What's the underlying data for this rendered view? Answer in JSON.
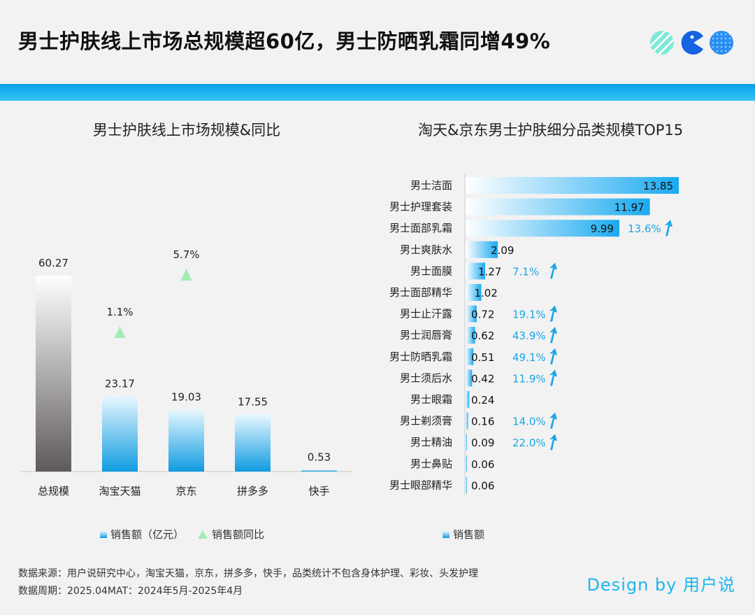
{
  "title": "男士护肤线上市场总规模超60亿，男士防晒乳霜同增49%",
  "left_chart_title": "男士护肤线上市场规模&同比",
  "right_chart_title": "淘天&京东男士护肤细分品类规模TOP15",
  "left_legend": {
    "bar": "销售额（亿元）",
    "line": "销售额同比"
  },
  "right_legend": {
    "bar": "销售额"
  },
  "footer": {
    "source": "数据来源：用户说研究中心，淘宝天猫，京东，拼多多，快手，品类统计不包含身体护理、彩妆、头发护理",
    "period": "数据周期：2025.04MAT：2024年5月-2025年4月"
  },
  "brand": "Design by 用户说",
  "colors": {
    "band": "#0aa0e8",
    "bar_top": "#e8f8ff",
    "bar_bottom": "#0f9be0",
    "total_top": "#ffffff",
    "total_bottom": "#5f5a5a",
    "growth_marker": "#a4ecb4",
    "growth_text": "#1aa6e6"
  },
  "chart_data": [
    {
      "type": "bar",
      "title": "男士护肤线上市场规模&同比",
      "categories": [
        "总规模",
        "淘宝天猫",
        "京东",
        "拼多多",
        "快手"
      ],
      "series": [
        {
          "name": "销售额（亿元）",
          "values": [
            60.27,
            23.17,
            19.03,
            17.55,
            0.53
          ]
        },
        {
          "name": "销售额同比",
          "values": [
            null,
            "1.1%",
            "5.7%",
            null,
            null
          ]
        }
      ],
      "ylim": [
        0,
        64
      ],
      "legend": "bottom"
    },
    {
      "type": "bar",
      "orientation": "horizontal",
      "title": "淘天&京东男士护肤细分品类规模TOP15",
      "categories": [
        "男士洁面",
        "男士护理套装",
        "男士面部乳霜",
        "男士爽肤水",
        "男士面膜",
        "男士面部精华",
        "男士止汗露",
        "男士润唇膏",
        "男士防晒乳霜",
        "男士须后水",
        "男士眼霜",
        "男士剃须膏",
        "男士精油",
        "男士鼻贴",
        "男士眼部精华"
      ],
      "series": [
        {
          "name": "销售额",
          "values": [
            13.85,
            11.97,
            9.99,
            2.09,
            1.27,
            1.02,
            0.72,
            0.62,
            0.51,
            0.42,
            0.24,
            0.16,
            0.09,
            0.06,
            0.06
          ]
        },
        {
          "name": "growth",
          "values": [
            null,
            null,
            "13.6%",
            null,
            "7.1%",
            null,
            "19.1%",
            "43.9%",
            "49.1%",
            "11.9%",
            null,
            "14.0%",
            "22.0%",
            null,
            null
          ]
        }
      ],
      "xlim": [
        0,
        14
      ],
      "legend": "bottom"
    }
  ]
}
